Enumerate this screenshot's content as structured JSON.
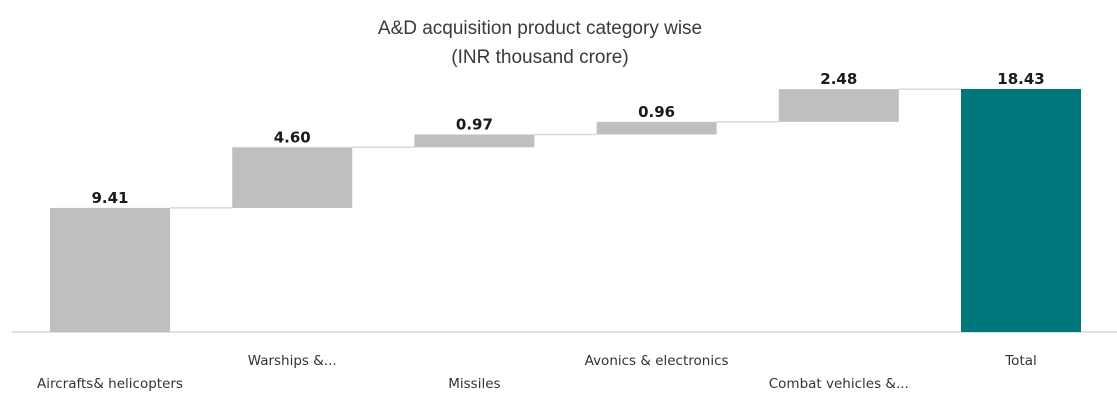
{
  "chart_data": {
    "type": "waterfall",
    "title_line1": "A&D acquisition product category wise",
    "title_line2": "(INR thousand crore)",
    "categories": [
      "Aircrafts& helicopters",
      "Warships &...",
      "Missiles",
      "Avonics & electronics",
      "Combat vehicles &...",
      "Total"
    ],
    "values": [
      9.41,
      4.6,
      0.97,
      0.96,
      2.48,
      18.43
    ],
    "value_labels": [
      "9.41",
      "4.60",
      "0.97",
      "0.96",
      "2.48",
      "18.43"
    ],
    "total_index": 5,
    "colors": {
      "step": "#bfbfbf",
      "total": "#00777a",
      "connector": "#d9d9d9",
      "axis": "#d9d9d9"
    },
    "legend": "none",
    "grid": false
  }
}
